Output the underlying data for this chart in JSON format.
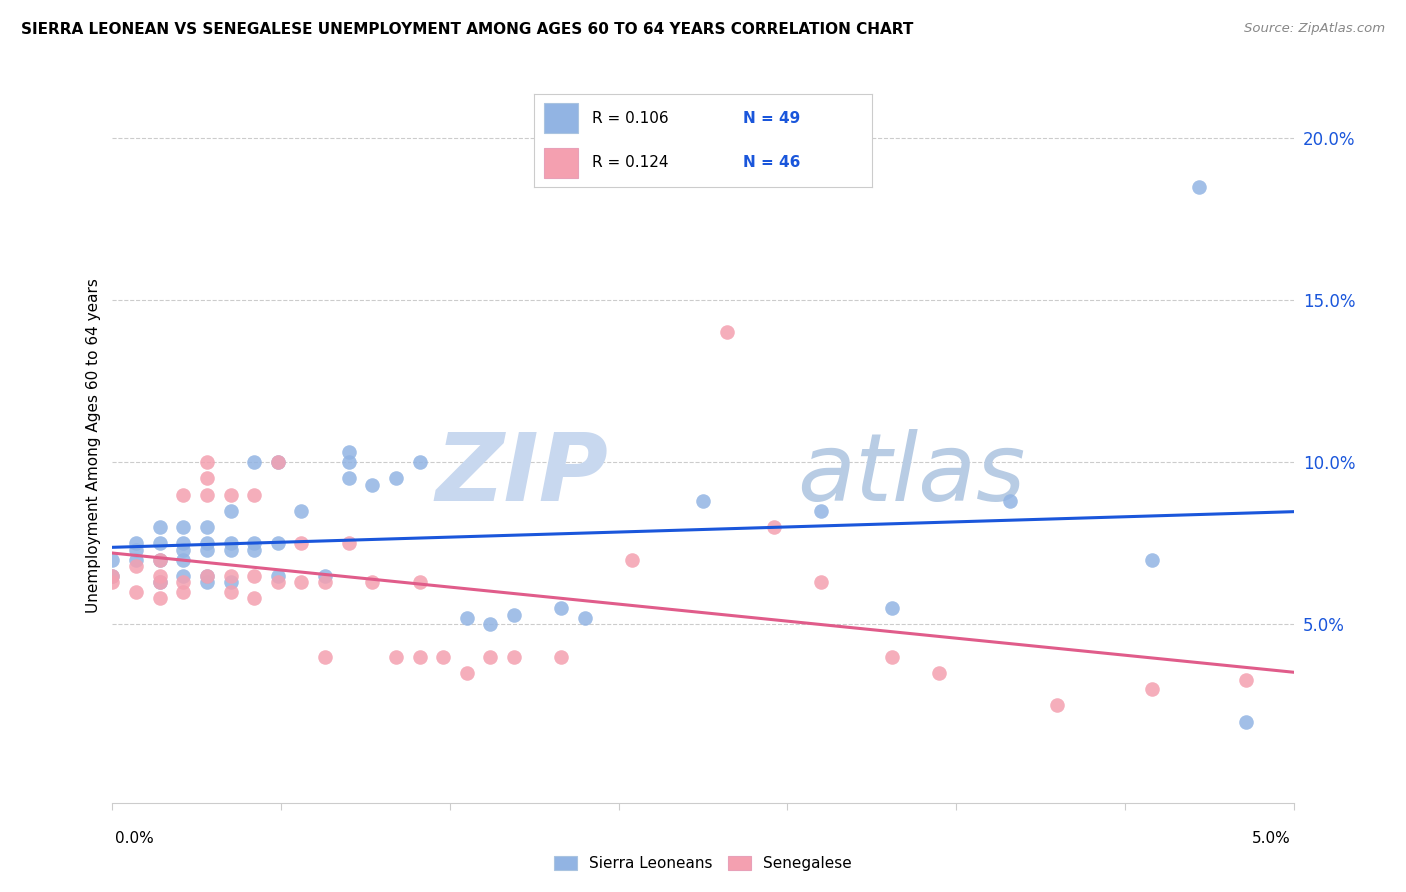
{
  "title": "SIERRA LEONEAN VS SENEGALESE UNEMPLOYMENT AMONG AGES 60 TO 64 YEARS CORRELATION CHART",
  "source": "Source: ZipAtlas.com",
  "ylabel": "Unemployment Among Ages 60 to 64 years",
  "xlim": [
    0.0,
    0.05
  ],
  "ylim": [
    -0.005,
    0.215
  ],
  "color_blue": "#92b4e3",
  "color_pink": "#f4a0b0",
  "line_blue": "#1a56db",
  "line_pink": "#e05c8a",
  "watermark_zip": "ZIP",
  "watermark_atlas": "atlas",
  "sierra_x": [
    0.0,
    0.0,
    0.001,
    0.001,
    0.001,
    0.002,
    0.002,
    0.002,
    0.002,
    0.003,
    0.003,
    0.003,
    0.003,
    0.003,
    0.004,
    0.004,
    0.004,
    0.004,
    0.004,
    0.005,
    0.005,
    0.005,
    0.005,
    0.006,
    0.006,
    0.006,
    0.007,
    0.007,
    0.007,
    0.008,
    0.009,
    0.01,
    0.01,
    0.01,
    0.011,
    0.012,
    0.013,
    0.015,
    0.016,
    0.017,
    0.019,
    0.02,
    0.025,
    0.03,
    0.033,
    0.038,
    0.044,
    0.046,
    0.048
  ],
  "sierra_y": [
    0.065,
    0.07,
    0.07,
    0.073,
    0.075,
    0.063,
    0.07,
    0.075,
    0.08,
    0.065,
    0.07,
    0.073,
    0.075,
    0.08,
    0.063,
    0.065,
    0.073,
    0.075,
    0.08,
    0.063,
    0.073,
    0.075,
    0.085,
    0.073,
    0.075,
    0.1,
    0.065,
    0.075,
    0.1,
    0.085,
    0.065,
    0.095,
    0.1,
    0.103,
    0.093,
    0.095,
    0.1,
    0.052,
    0.05,
    0.053,
    0.055,
    0.052,
    0.088,
    0.085,
    0.055,
    0.088,
    0.07,
    0.185,
    0.02
  ],
  "senegal_x": [
    0.0,
    0.0,
    0.001,
    0.001,
    0.002,
    0.002,
    0.002,
    0.002,
    0.003,
    0.003,
    0.003,
    0.004,
    0.004,
    0.004,
    0.004,
    0.005,
    0.005,
    0.005,
    0.006,
    0.006,
    0.006,
    0.007,
    0.007,
    0.008,
    0.008,
    0.009,
    0.009,
    0.01,
    0.011,
    0.012,
    0.013,
    0.013,
    0.014,
    0.015,
    0.016,
    0.017,
    0.019,
    0.022,
    0.026,
    0.028,
    0.03,
    0.033,
    0.035,
    0.04,
    0.044,
    0.048
  ],
  "senegal_y": [
    0.063,
    0.065,
    0.06,
    0.068,
    0.058,
    0.063,
    0.065,
    0.07,
    0.06,
    0.063,
    0.09,
    0.065,
    0.09,
    0.095,
    0.1,
    0.06,
    0.065,
    0.09,
    0.058,
    0.065,
    0.09,
    0.063,
    0.1,
    0.063,
    0.075,
    0.063,
    0.04,
    0.075,
    0.063,
    0.04,
    0.04,
    0.063,
    0.04,
    0.035,
    0.04,
    0.04,
    0.04,
    0.07,
    0.14,
    0.08,
    0.063,
    0.04,
    0.035,
    0.025,
    0.03,
    0.033
  ],
  "legend_r1": "R = 0.106",
  "legend_n1": "N = 49",
  "legend_r2": "R = 0.124",
  "legend_n2": "N = 46"
}
